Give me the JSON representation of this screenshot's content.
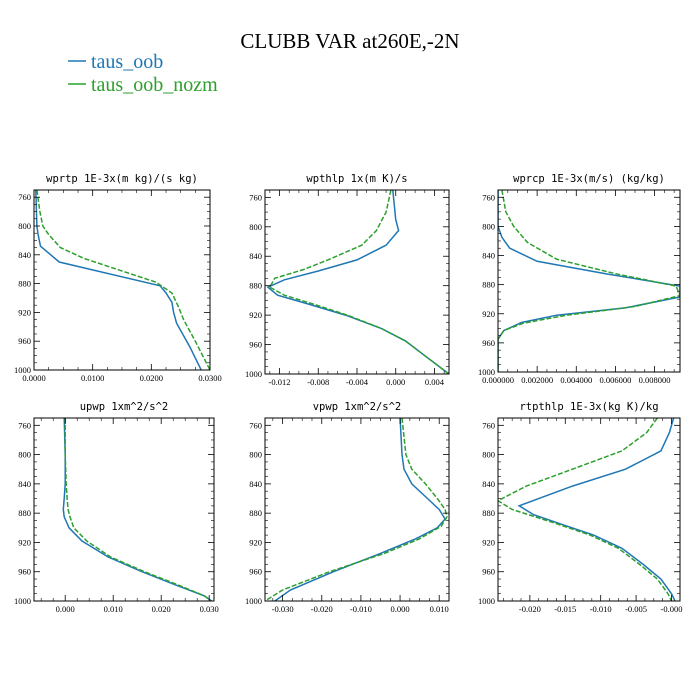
{
  "figure": {
    "title": "CLUBB VAR at260E,-2N",
    "legend": [
      {
        "label": "taus_oob",
        "color": "#1f77b4",
        "dash": "solid"
      },
      {
        "label": "taus_oob_nozm",
        "color": "#2ca02c",
        "dash": "dashed"
      }
    ]
  },
  "chart_data": [
    {
      "type": "line",
      "title": "wprtp  1E-3x(m kg)/(s kg)",
      "xlim": [
        0,
        0.03
      ],
      "ylim": [
        1000,
        750
      ],
      "xticks": [
        0,
        0.01,
        0.02,
        0.03
      ],
      "xtick_labels": [
        "0.0000",
        "0.0100",
        "0.0200",
        "0.0300"
      ],
      "yticks": [
        760,
        800,
        840,
        880,
        920,
        960,
        1000
      ],
      "grid": false,
      "series": [
        {
          "name": "taus_oob",
          "x": [
            0.0003,
            0.0005,
            0.0007,
            0.0011,
            0.0043,
            0.0215,
            0.0225,
            0.0235,
            0.0238,
            0.0243,
            0.0265,
            0.0285
          ],
          "y": [
            750,
            800,
            812,
            828,
            850,
            883,
            893,
            906,
            920,
            935,
            967,
            1000
          ]
        },
        {
          "name": "taus_oob_nozm",
          "x": [
            0.0005,
            0.001,
            0.0015,
            0.0025,
            0.0045,
            0.0085,
            0.0208,
            0.0235,
            0.0245,
            0.0255,
            0.0275,
            0.03
          ],
          "y": [
            750,
            780,
            800,
            812,
            830,
            845,
            878,
            893,
            910,
            930,
            960,
            1000
          ]
        }
      ]
    },
    {
      "type": "line",
      "title": "wpthlp  1x(m K)/s",
      "xlim": [
        -0.0135,
        0.0055
      ],
      "ylim": [
        1000,
        750
      ],
      "xticks": [
        -0.012,
        -0.008,
        -0.004,
        0.0,
        0.004
      ],
      "xtick_labels": [
        "-0.012",
        "-0.008",
        "-0.004",
        "0.000",
        "0.004"
      ],
      "yticks": [
        760,
        800,
        840,
        880,
        920,
        960,
        1000
      ],
      "grid": false,
      "series": [
        {
          "name": "taus_oob",
          "x": [
            -0.0003,
            0.0,
            0.0003,
            -0.001,
            -0.004,
            -0.008,
            -0.0115,
            -0.0132,
            -0.0122,
            -0.009,
            -0.0052,
            -0.0015,
            0.001,
            0.0035,
            0.0055
          ],
          "y": [
            750,
            790,
            805,
            825,
            845,
            860,
            872,
            882,
            893,
            905,
            920,
            938,
            955,
            980,
            1000
          ]
        },
        {
          "name": "taus_oob_nozm",
          "x": [
            -0.0005,
            -0.001,
            -0.002,
            -0.0035,
            -0.007,
            -0.0095,
            -0.0125,
            -0.013,
            -0.0115,
            -0.0085,
            -0.005,
            -0.0015,
            0.001,
            0.0035,
            0.0055
          ],
          "y": [
            750,
            780,
            805,
            825,
            845,
            858,
            870,
            882,
            893,
            905,
            920,
            938,
            955,
            980,
            1000
          ]
        }
      ]
    },
    {
      "type": "line",
      "title": "wprcp  1E-3x(m/s) (kg/kg)",
      "xlim": [
        0,
        0.0093
      ],
      "ylim": [
        1000,
        750
      ],
      "xticks": [
        0,
        0.002,
        0.004,
        0.006,
        0.008
      ],
      "xtick_labels": [
        "0.000000",
        "0.002000",
        "0.004000",
        "0.006000",
        "0.008000"
      ],
      "yticks": [
        760,
        800,
        840,
        880,
        920,
        960,
        1000
      ],
      "grid": false,
      "series": [
        {
          "name": "taus_oob",
          "x": [
            0.0,
            0.0,
            0.0002,
            0.0006,
            0.002,
            0.0055,
            0.0093,
            0.0093,
            0.0065,
            0.003,
            0.0012,
            0.0003,
            0.0,
            0.0,
            0.0
          ],
          "y": [
            750,
            800,
            815,
            830,
            848,
            865,
            882,
            897,
            912,
            922,
            932,
            943,
            955,
            975,
            1000
          ]
        },
        {
          "name": "taus_oob_nozm",
          "x": [
            0.0002,
            0.0004,
            0.0008,
            0.0015,
            0.003,
            0.006,
            0.0091,
            0.0093,
            0.007,
            0.0035,
            0.0013,
            0.0003,
            0.0,
            0.0,
            0.0
          ],
          "y": [
            750,
            780,
            800,
            822,
            845,
            865,
            882,
            895,
            910,
            922,
            933,
            943,
            955,
            975,
            1000
          ]
        }
      ]
    },
    {
      "type": "line",
      "title": "upwp   1xm^2/s^2",
      "xlim": [
        -0.0065,
        0.031
      ],
      "ylim": [
        1000,
        750
      ],
      "xticks": [
        0,
        0.01,
        0.02,
        0.03
      ],
      "xtick_labels": [
        "0.000",
        "0.010",
        "0.020",
        "0.030"
      ],
      "yticks": [
        760,
        800,
        840,
        880,
        920,
        960,
        1000
      ],
      "grid": false,
      "series": [
        {
          "name": "taus_oob",
          "x": [
            -0.0002,
            0.0,
            0.0,
            -0.0002,
            -0.0004,
            -0.0002,
            0.0008,
            0.0035,
            0.009,
            0.016,
            0.023,
            0.029,
            0.0305
          ],
          "y": [
            750,
            800,
            840,
            860,
            875,
            885,
            900,
            918,
            940,
            960,
            978,
            993,
            1000
          ]
        },
        {
          "name": "taus_oob_nozm",
          "x": [
            0.0,
            0.0,
            0.0002,
            0.0004,
            0.0006,
            0.001,
            0.0018,
            0.0045,
            0.0095,
            0.0165,
            0.0235,
            0.029,
            0.0305
          ],
          "y": [
            750,
            800,
            840,
            860,
            875,
            885,
            900,
            918,
            940,
            960,
            978,
            993,
            1000
          ]
        }
      ]
    },
    {
      "type": "line",
      "title": "vpwp   1xm^2/s^2",
      "xlim": [
        -0.0345,
        0.0125
      ],
      "ylim": [
        1000,
        750
      ],
      "xticks": [
        -0.03,
        -0.02,
        -0.01,
        0.0,
        0.01
      ],
      "xtick_labels": [
        "-0.030",
        "-0.020",
        "-0.010",
        "0.000",
        "0.010"
      ],
      "yticks": [
        760,
        800,
        840,
        880,
        920,
        960,
        1000
      ],
      "grid": false,
      "series": [
        {
          "name": "taus_oob",
          "x": [
            0.0,
            0.0005,
            0.001,
            0.003,
            0.007,
            0.01,
            0.0115,
            0.0095,
            0.004,
            -0.005,
            -0.017,
            -0.028,
            -0.032
          ],
          "y": [
            750,
            800,
            820,
            840,
            860,
            875,
            888,
            900,
            915,
            935,
            960,
            985,
            1000
          ]
        },
        {
          "name": "taus_oob_nozm",
          "x": [
            0.0005,
            0.0015,
            0.003,
            0.0065,
            0.0095,
            0.0115,
            0.012,
            0.0105,
            0.005,
            -0.004,
            -0.018,
            -0.03,
            -0.0345
          ],
          "y": [
            750,
            800,
            820,
            840,
            860,
            875,
            885,
            898,
            915,
            935,
            960,
            985,
            1000
          ]
        }
      ]
    },
    {
      "type": "line",
      "title": "rtpthlp  1E-3x(kg K)/kg",
      "xlim": [
        -0.0245,
        0.0012
      ],
      "ylim": [
        1000,
        750
      ],
      "xticks": [
        -0.02,
        -0.015,
        -0.01,
        -0.005,
        0.0
      ],
      "xtick_labels": [
        "-0.020",
        "-0.015",
        "-0.010",
        "-0.005",
        "-0.000"
      ],
      "yticks": [
        760,
        800,
        840,
        880,
        920,
        960,
        1000
      ],
      "grid": false,
      "series": [
        {
          "name": "taus_oob",
          "x": [
            0.0003,
            -0.0003,
            -0.0015,
            -0.0065,
            -0.014,
            -0.0215,
            -0.0195,
            -0.015,
            -0.011,
            -0.007,
            -0.004,
            -0.0015,
            0.0,
            0.0005
          ],
          "y": [
            750,
            770,
            795,
            820,
            843,
            870,
            882,
            897,
            910,
            928,
            950,
            970,
            990,
            1000
          ]
        },
        {
          "name": "taus_oob_nozm",
          "x": [
            -0.002,
            -0.0035,
            -0.007,
            -0.014,
            -0.0205,
            -0.0245,
            -0.0225,
            -0.017,
            -0.0115,
            -0.0075,
            -0.0045,
            -0.002,
            -0.0005,
            0.0
          ],
          "y": [
            750,
            770,
            795,
            820,
            843,
            863,
            875,
            892,
            910,
            928,
            950,
            970,
            990,
            1000
          ]
        }
      ]
    }
  ]
}
